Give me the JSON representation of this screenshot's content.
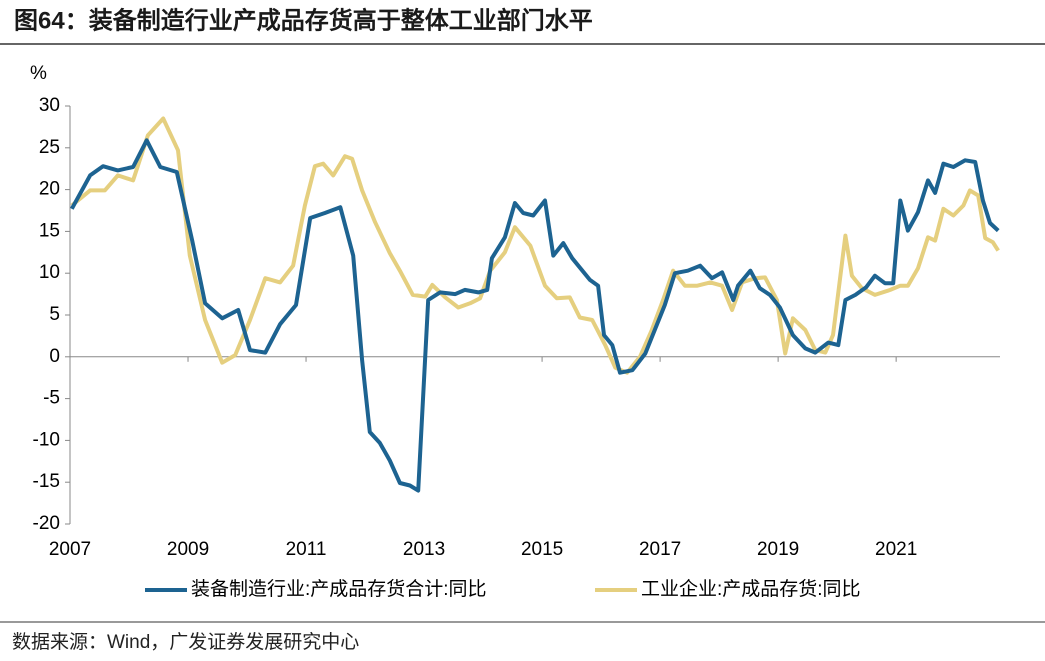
{
  "chart_data": {
    "type": "line",
    "title": "图64：装备制造行业产成品存货高于整体工业部门水平",
    "y_label": "%",
    "source": "数据来源：Wind，广发证券发展研究中心",
    "xlim": [
      2007,
      2022.76
    ],
    "xticks": [
      2007,
      2009,
      2011,
      2013,
      2015,
      2017,
      2019,
      2021
    ],
    "ylim": [
      -20,
      30
    ],
    "yticks": [
      -20,
      -15,
      -10,
      -5,
      0,
      5,
      10,
      15,
      20,
      25,
      30
    ],
    "legend": "bottom",
    "series": [
      {
        "name": "装备制造行业:产成品存货合计:同比",
        "color": "#1d6391",
        "x": [
          2007.03,
          2007.34,
          2007.56,
          2007.81,
          2008.07,
          2008.3,
          2008.53,
          2008.81,
          2009.07,
          2009.29,
          2009.58,
          2009.85,
          2010.05,
          2010.31,
          2010.56,
          2010.83,
          2011.07,
          2011.32,
          2011.58,
          2011.8,
          2011.95,
          2012.08,
          2012.25,
          2012.42,
          2012.59,
          2012.76,
          2012.9,
          2013.07,
          2013.27,
          2013.53,
          2013.69,
          2013.92,
          2014.07,
          2014.15,
          2014.37,
          2014.54,
          2014.68,
          2014.85,
          2015.05,
          2015.19,
          2015.36,
          2015.51,
          2015.81,
          2015.95,
          2016.05,
          2016.19,
          2016.32,
          2016.53,
          2016.75,
          2016.92,
          2017.08,
          2017.25,
          2017.47,
          2017.68,
          2017.88,
          2018.05,
          2018.24,
          2018.32,
          2018.53,
          2018.69,
          2018.86,
          2019.03,
          2019.25,
          2019.46,
          2019.63,
          2019.85,
          2020.02,
          2020.14,
          2020.31,
          2020.49,
          2020.64,
          2020.81,
          2020.95,
          2021.07,
          2021.2,
          2021.37,
          2021.54,
          2021.66,
          2021.8,
          2021.97,
          2022.17,
          2022.34,
          2022.47,
          2022.59,
          2022.73
        ],
        "values": [
          17.7,
          21.7,
          22.8,
          22.3,
          22.7,
          25.9,
          22.7,
          22.1,
          13.9,
          6.4,
          4.6,
          5.6,
          0.8,
          0.5,
          3.9,
          6.2,
          16.6,
          17.2,
          17.9,
          12.1,
          -0.4,
          -9.0,
          -10.3,
          -12.4,
          -15.1,
          -15.4,
          -16,
          6.8,
          7.7,
          7.5,
          8.0,
          7.7,
          8.0,
          11.8,
          14.3,
          18.4,
          17.2,
          16.9,
          18.7,
          12.1,
          13.6,
          11.8,
          9.2,
          8.5,
          2.6,
          1.4,
          -1.9,
          -1.6,
          0.4,
          3.4,
          6.2,
          10,
          10.3,
          10.9,
          9.4,
          10.1,
          6.8,
          8.5,
          10.3,
          8.2,
          7.4,
          5.9,
          2.6,
          1.0,
          0.5,
          1.7,
          1.4,
          6.8,
          7.4,
          8.3,
          9.7,
          8.8,
          8.8,
          18.7,
          15.1,
          17.3,
          21.1,
          19.6,
          23.1,
          22.7,
          23.5,
          23.3,
          18.7,
          16.0,
          15.1
        ]
      },
      {
        "name": "工业企业:产成品存货:同比",
        "color": "#e5cf7f",
        "x": [
          2007.03,
          2007.34,
          2007.59,
          2007.81,
          2008.07,
          2008.32,
          2008.58,
          2008.83,
          2009.03,
          2009.29,
          2009.58,
          2009.8,
          2010.05,
          2010.31,
          2010.56,
          2010.78,
          2010.98,
          2011.15,
          2011.29,
          2011.46,
          2011.66,
          2011.78,
          2011.95,
          2012.17,
          2012.42,
          2012.59,
          2012.81,
          2013.02,
          2013.14,
          2013.36,
          2013.58,
          2013.78,
          2013.95,
          2014.12,
          2014.37,
          2014.54,
          2014.8,
          2015.05,
          2015.25,
          2015.47,
          2015.64,
          2015.85,
          2016.07,
          2016.24,
          2016.44,
          2016.66,
          2016.86,
          2017.05,
          2017.22,
          2017.42,
          2017.63,
          2017.85,
          2018.05,
          2018.22,
          2018.39,
          2018.61,
          2018.78,
          2018.98,
          2019.12,
          2019.25,
          2019.46,
          2019.63,
          2019.8,
          2019.93,
          2020.14,
          2020.25,
          2020.42,
          2020.64,
          2020.9,
          2021.07,
          2021.2,
          2021.37,
          2021.54,
          2021.66,
          2021.8,
          2021.97,
          2022.14,
          2022.25,
          2022.39,
          2022.51,
          2022.64,
          2022.73
        ],
        "values": [
          18.1,
          19.9,
          19.9,
          21.7,
          21.1,
          26.5,
          28.5,
          24.7,
          12.1,
          4.4,
          -0.7,
          0.2,
          4.4,
          9.4,
          8.9,
          10.9,
          18.1,
          22.8,
          23.1,
          21.7,
          24.0,
          23.7,
          19.9,
          16.1,
          12.4,
          10.3,
          7.4,
          7.2,
          8.6,
          7.1,
          5.9,
          6.4,
          7.0,
          10.3,
          12.5,
          15.5,
          13.3,
          8.5,
          7.0,
          7.1,
          4.7,
          4.4,
          1.4,
          -1.3,
          -1.9,
          0,
          3.2,
          6.8,
          10.3,
          8.5,
          8.5,
          8.9,
          8.5,
          5.6,
          8.9,
          9.4,
          9.5,
          6.8,
          0.4,
          4.6,
          3.2,
          0.8,
          0.5,
          2.6,
          14.5,
          9.7,
          8.2,
          7.4,
          8.0,
          8.5,
          8.5,
          10.6,
          14.3,
          13.9,
          17.7,
          16.9,
          18.1,
          19.9,
          19.3,
          14.2,
          13.7,
          12.7
        ]
      }
    ]
  }
}
